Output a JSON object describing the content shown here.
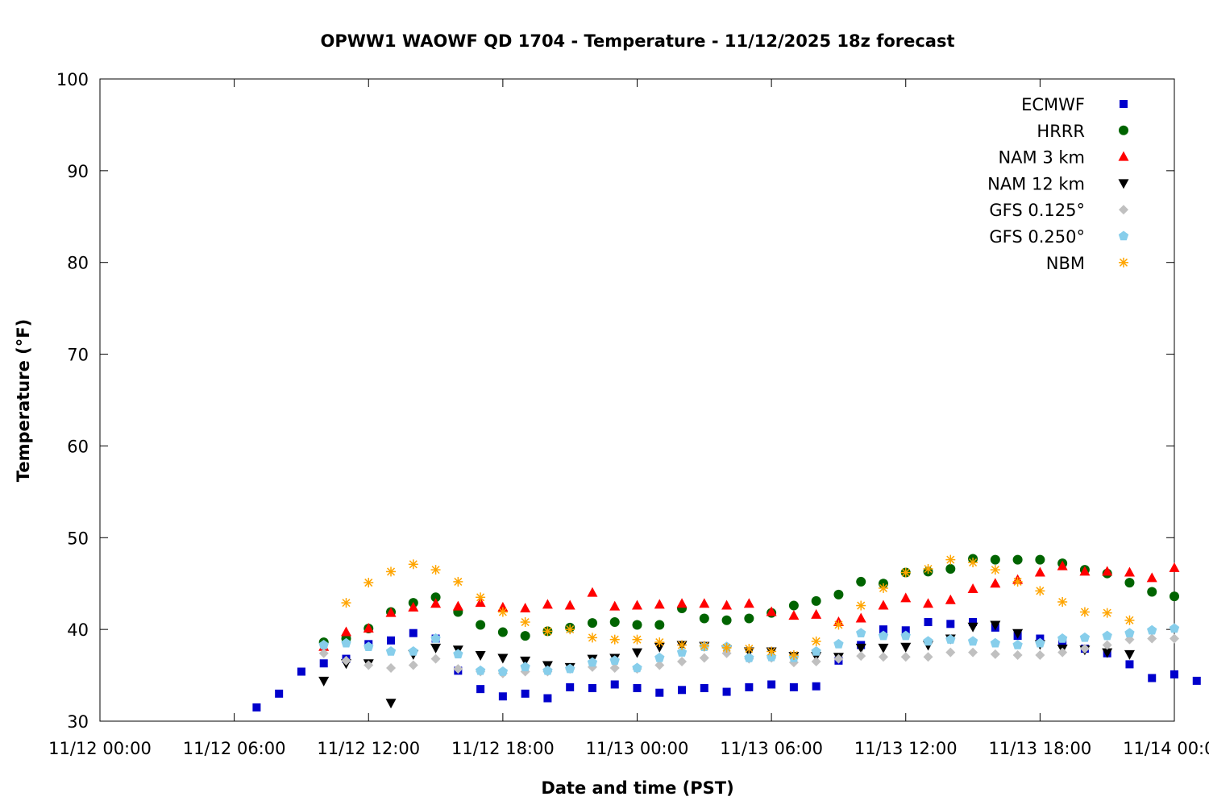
{
  "chart_data": {
    "type": "scatter",
    "title": "OPWW1 WAOWF QD 1704 - Temperature - 11/12/2025 18z forecast",
    "xlabel": "Date and time (PST)",
    "ylabel": "Temperature (°F)",
    "x_units": "hours since 11/12 00:00 PST",
    "xlim": [
      0,
      48
    ],
    "ylim": [
      30,
      100
    ],
    "x_ticks": [
      {
        "value": 0,
        "label": "11/12 00:00"
      },
      {
        "value": 6,
        "label": "11/12 06:00"
      },
      {
        "value": 12,
        "label": "11/12 12:00"
      },
      {
        "value": 18,
        "label": "11/12 18:00"
      },
      {
        "value": 24,
        "label": "11/13 00:00"
      },
      {
        "value": 30,
        "label": "11/13 06:00"
      },
      {
        "value": 36,
        "label": "11/13 12:00"
      },
      {
        "value": 42,
        "label": "11/13 18:00"
      },
      {
        "value": 48,
        "label": "11/14 00:00"
      }
    ],
    "y_ticks": [
      30,
      40,
      50,
      60,
      70,
      80,
      90,
      100
    ],
    "grid": false,
    "legend_position": "top-right",
    "series": [
      {
        "name": "ECMWF",
        "marker": "square",
        "color": "#0000cc",
        "x_start": 7,
        "values": [
          31.5,
          33.0,
          35.4,
          36.3,
          36.8,
          38.4,
          38.8,
          39.6,
          39.0,
          35.5,
          33.5,
          32.7,
          33.0,
          32.5,
          33.7,
          33.6,
          34.0,
          33.6,
          33.1,
          33.4,
          33.6,
          33.2,
          33.7,
          34.0,
          33.7,
          33.8,
          36.6,
          38.3,
          40.0,
          39.9,
          40.8,
          40.6,
          40.8,
          40.2,
          39.3,
          39.0,
          38.6,
          37.9,
          37.4,
          36.2,
          34.7,
          35.1,
          34.4
        ]
      },
      {
        "name": "HRRR",
        "marker": "circle",
        "color": "#006400",
        "x_start": 10,
        "values": [
          38.6,
          39.0,
          40.1,
          41.9,
          42.9,
          43.5,
          41.9,
          40.5,
          39.7,
          39.3,
          39.8,
          40.2,
          40.7,
          40.8,
          40.5,
          40.5,
          42.3,
          41.2,
          41.0,
          41.2,
          41.8,
          42.6,
          43.1,
          43.8,
          45.2,
          45.0,
          46.2,
          46.3,
          46.6,
          47.7,
          47.6,
          47.6,
          47.6,
          47.2,
          46.5,
          46.1,
          45.1,
          44.1,
          43.6
        ]
      },
      {
        "name": "NAM 3 km",
        "marker": "triangle-up",
        "color": "#ff0000",
        "x_start": 10,
        "values": [
          38.1,
          39.7,
          40.1,
          41.8,
          42.4,
          42.8,
          42.5,
          42.9,
          42.4,
          42.3,
          42.7,
          42.6,
          44.0,
          42.5,
          42.6,
          42.7,
          42.8,
          42.8,
          42.6,
          42.8,
          41.9,
          41.5,
          41.6,
          40.8,
          41.2,
          42.6,
          43.4,
          42.8,
          43.2,
          44.4,
          45.0,
          45.4,
          46.2,
          46.9,
          46.3,
          46.3,
          46.2,
          45.6,
          46.7
        ]
      },
      {
        "name": "NAM 12 km",
        "marker": "triangle-down",
        "color": "#000000",
        "x_start": 10,
        "values": [
          34.4,
          36.3,
          36.3,
          32.0,
          37.3,
          38.0,
          37.8,
          37.2,
          36.9,
          36.6,
          36.1,
          35.9,
          36.8,
          36.9,
          37.5,
          38.1,
          38.3,
          38.2,
          37.8,
          37.6,
          37.6,
          37.1,
          37.1,
          37.0,
          38.0,
          38.0,
          38.1,
          38.3,
          39.0,
          40.3,
          40.5,
          39.6,
          38.4,
          37.9,
          37.8,
          37.5,
          37.3
        ]
      },
      {
        "name": "GFS 0.125°",
        "marker": "diamond",
        "color": "#c0c0c0",
        "x_start": 10,
        "values": [
          37.4,
          36.6,
          36.1,
          35.8,
          36.1,
          36.8,
          35.7,
          35.4,
          35.2,
          35.4,
          35.4,
          35.7,
          35.9,
          35.8,
          35.7,
          36.1,
          36.5,
          36.9,
          37.4,
          36.8,
          36.9,
          36.4,
          36.5,
          36.8,
          37.1,
          37.0,
          37.0,
          37.0,
          37.5,
          37.5,
          37.3,
          37.2,
          37.2,
          37.5,
          37.9,
          38.3,
          38.9,
          39.0,
          39.0
        ]
      },
      {
        "name": "GFS 0.250°",
        "marker": "pentagon",
        "color": "#87ceeb",
        "x_start": 10,
        "values": [
          38.3,
          38.5,
          38.1,
          37.6,
          37.6,
          39.0,
          37.3,
          35.5,
          35.4,
          35.9,
          35.5,
          35.7,
          36.4,
          36.6,
          35.8,
          36.9,
          37.5,
          38.1,
          38.1,
          36.9,
          37.0,
          36.9,
          37.6,
          38.4,
          39.6,
          39.3,
          39.3,
          38.7,
          38.9,
          38.7,
          38.5,
          38.3,
          38.5,
          39.0,
          39.1,
          39.3,
          39.6,
          39.9,
          40.1
        ]
      },
      {
        "name": "NBM",
        "marker": "star",
        "color": "#ffa500",
        "x_start": 11,
        "values": [
          42.9,
          45.1,
          46.3,
          47.1,
          46.5,
          45.2,
          43.5,
          41.9,
          40.8,
          39.8,
          40.0,
          39.1,
          38.9,
          38.9,
          38.6,
          38.3,
          38.2,
          38.0,
          37.9,
          37.6,
          37.2,
          38.7,
          40.5,
          42.6,
          44.5,
          46.2,
          46.6,
          47.6,
          47.3,
          46.5,
          45.2,
          44.2,
          43.0,
          41.9,
          41.8,
          41.0
        ]
      }
    ]
  }
}
